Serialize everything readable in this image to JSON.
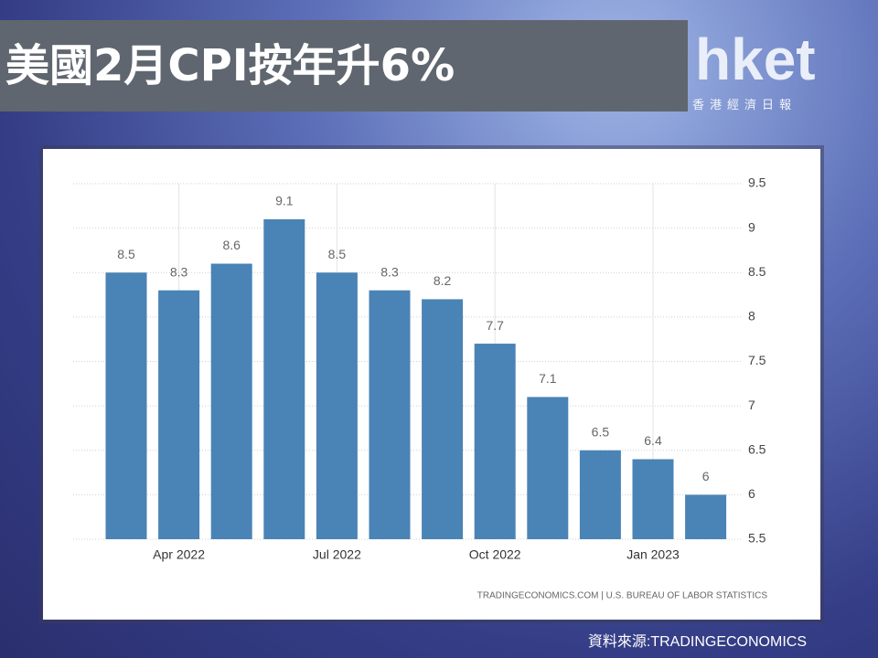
{
  "headline": "美國2月CPI按年升6%",
  "logo": {
    "name": "hket",
    "subtitle": "香港經濟日報"
  },
  "caption": "資料來源:TRADINGECONOMICS",
  "chart_data": {
    "type": "bar",
    "source": "TRADINGECONOMICS.COM | U.S. BUREAU OF LABOR STATISTICS",
    "categories": [
      null,
      "Apr 2022",
      null,
      null,
      "Jul 2022",
      null,
      null,
      "Oct 2022",
      null,
      null,
      "Jan 2023",
      null
    ],
    "values": [
      8.5,
      8.3,
      8.6,
      9.1,
      8.5,
      8.3,
      8.2,
      7.7,
      7.1,
      6.5,
      6.4,
      6
    ],
    "color": "#4a83b6",
    "ylim": [
      5.5,
      9.5
    ],
    "yticks": [
      5.5,
      6,
      6.5,
      7,
      7.5,
      8,
      8.5,
      9,
      9.5
    ],
    "grid": true
  }
}
